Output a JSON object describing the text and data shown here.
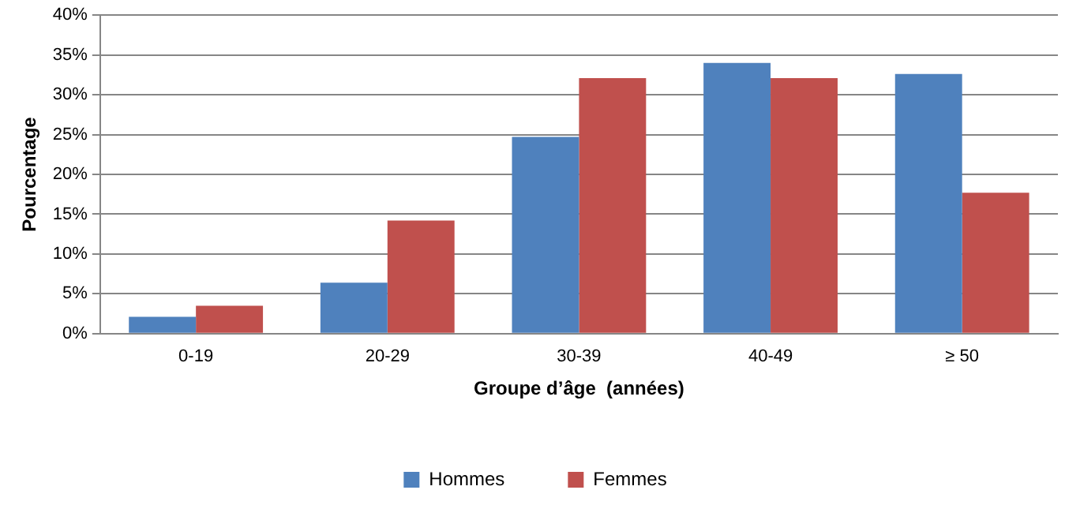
{
  "chart_data": {
    "type": "bar",
    "xlabel": "Groupe d’âge  (années)",
    "ylabel": "Pourcentage",
    "categories": [
      "0-19",
      "20-29",
      "30-39",
      "40-49",
      "≥ 50"
    ],
    "series": [
      {
        "name": "Hommes",
        "color": "#4f81bd",
        "values": [
          2.1,
          6.4,
          24.7,
          34.0,
          32.6
        ]
      },
      {
        "name": "Femmes",
        "color": "#c0504d",
        "values": [
          3.5,
          14.2,
          32.1,
          32.1,
          17.7
        ]
      }
    ],
    "ylim": [
      0,
      40
    ],
    "yticks": [
      {
        "value": 0,
        "label": "0%"
      },
      {
        "value": 5,
        "label": "5%"
      },
      {
        "value": 10,
        "label": "10%"
      },
      {
        "value": 15,
        "label": "15%"
      },
      {
        "value": 20,
        "label": "20%"
      },
      {
        "value": 25,
        "label": "25%"
      },
      {
        "value": 30,
        "label": "30%"
      },
      {
        "value": 35,
        "label": "35%"
      },
      {
        "value": 40,
        "label": "40%"
      }
    ],
    "grid": "y",
    "legend": "bottom"
  }
}
